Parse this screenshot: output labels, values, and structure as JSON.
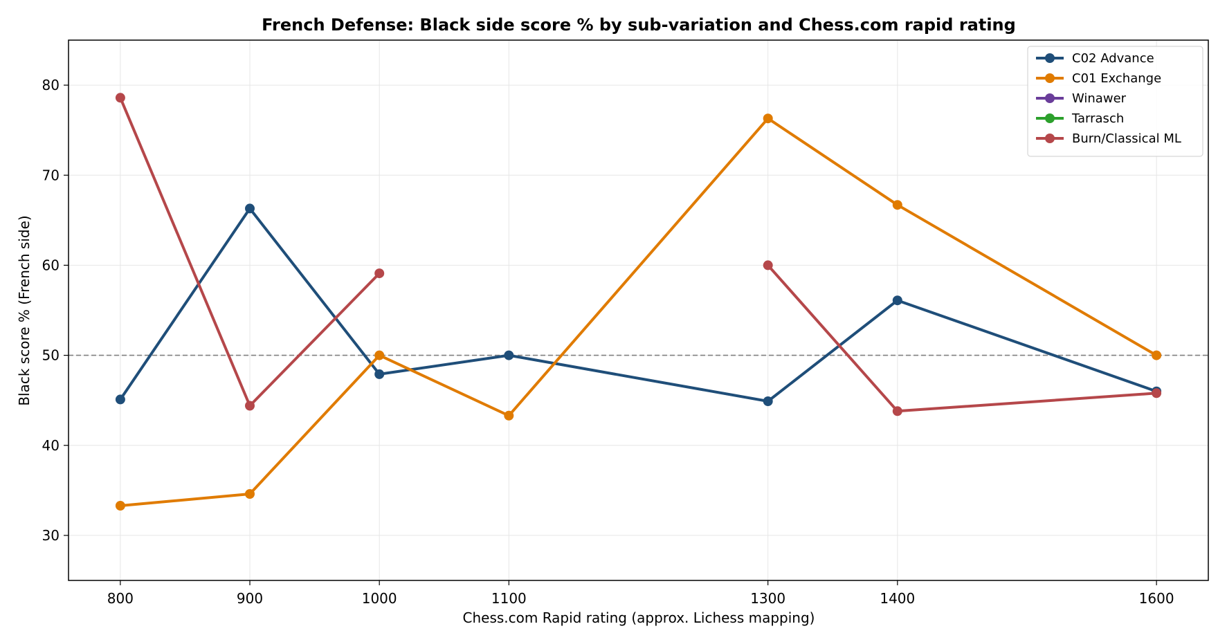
{
  "chart_data": {
    "type": "line",
    "title": "French Defense: Black side score % by sub-variation and Chess.com rapid rating",
    "xlabel": "Chess.com Rapid rating (approx. Lichess mapping)",
    "ylabel": "Black score % (French side)",
    "xlim": [
      760,
      1640
    ],
    "ylim": [
      25,
      85
    ],
    "xticks": [
      800,
      900,
      1000,
      1100,
      1300,
      1400,
      1600
    ],
    "yticks": [
      30,
      40,
      50,
      60,
      70,
      80
    ],
    "grid": true,
    "legend_position": "top-right",
    "reference_line": {
      "y": 50,
      "style": "dashed",
      "color": "#808080"
    },
    "series": [
      {
        "name": "C02 Advance",
        "color": "#1f4e79",
        "points": [
          [
            800,
            45.1
          ],
          [
            900,
            66.3
          ],
          [
            1000,
            47.9
          ],
          [
            1100,
            50.0
          ],
          [
            1300,
            44.9
          ],
          [
            1400,
            56.1
          ],
          [
            1600,
            46.0
          ]
        ]
      },
      {
        "name": "C01 Exchange",
        "color": "#e07b00",
        "points": [
          [
            800,
            33.3
          ],
          [
            900,
            34.6
          ],
          [
            1000,
            50.0
          ],
          [
            1100,
            43.3
          ],
          [
            1300,
            76.3
          ],
          [
            1400,
            66.7
          ],
          [
            1600,
            50.0
          ]
        ]
      },
      {
        "name": "Winawer",
        "color": "#6a3d9a",
        "points": []
      },
      {
        "name": "Tarrasch",
        "color": "#2ca02c",
        "points": []
      },
      {
        "name": "Burn/Classical ML",
        "color": "#b5474a",
        "segments": [
          [
            [
              800,
              78.6
            ],
            [
              900,
              44.4
            ],
            [
              1000,
              59.1
            ]
          ],
          [
            [
              1300,
              60.0
            ],
            [
              1400,
              43.8
            ],
            [
              1600,
              45.8
            ]
          ]
        ]
      }
    ]
  }
}
